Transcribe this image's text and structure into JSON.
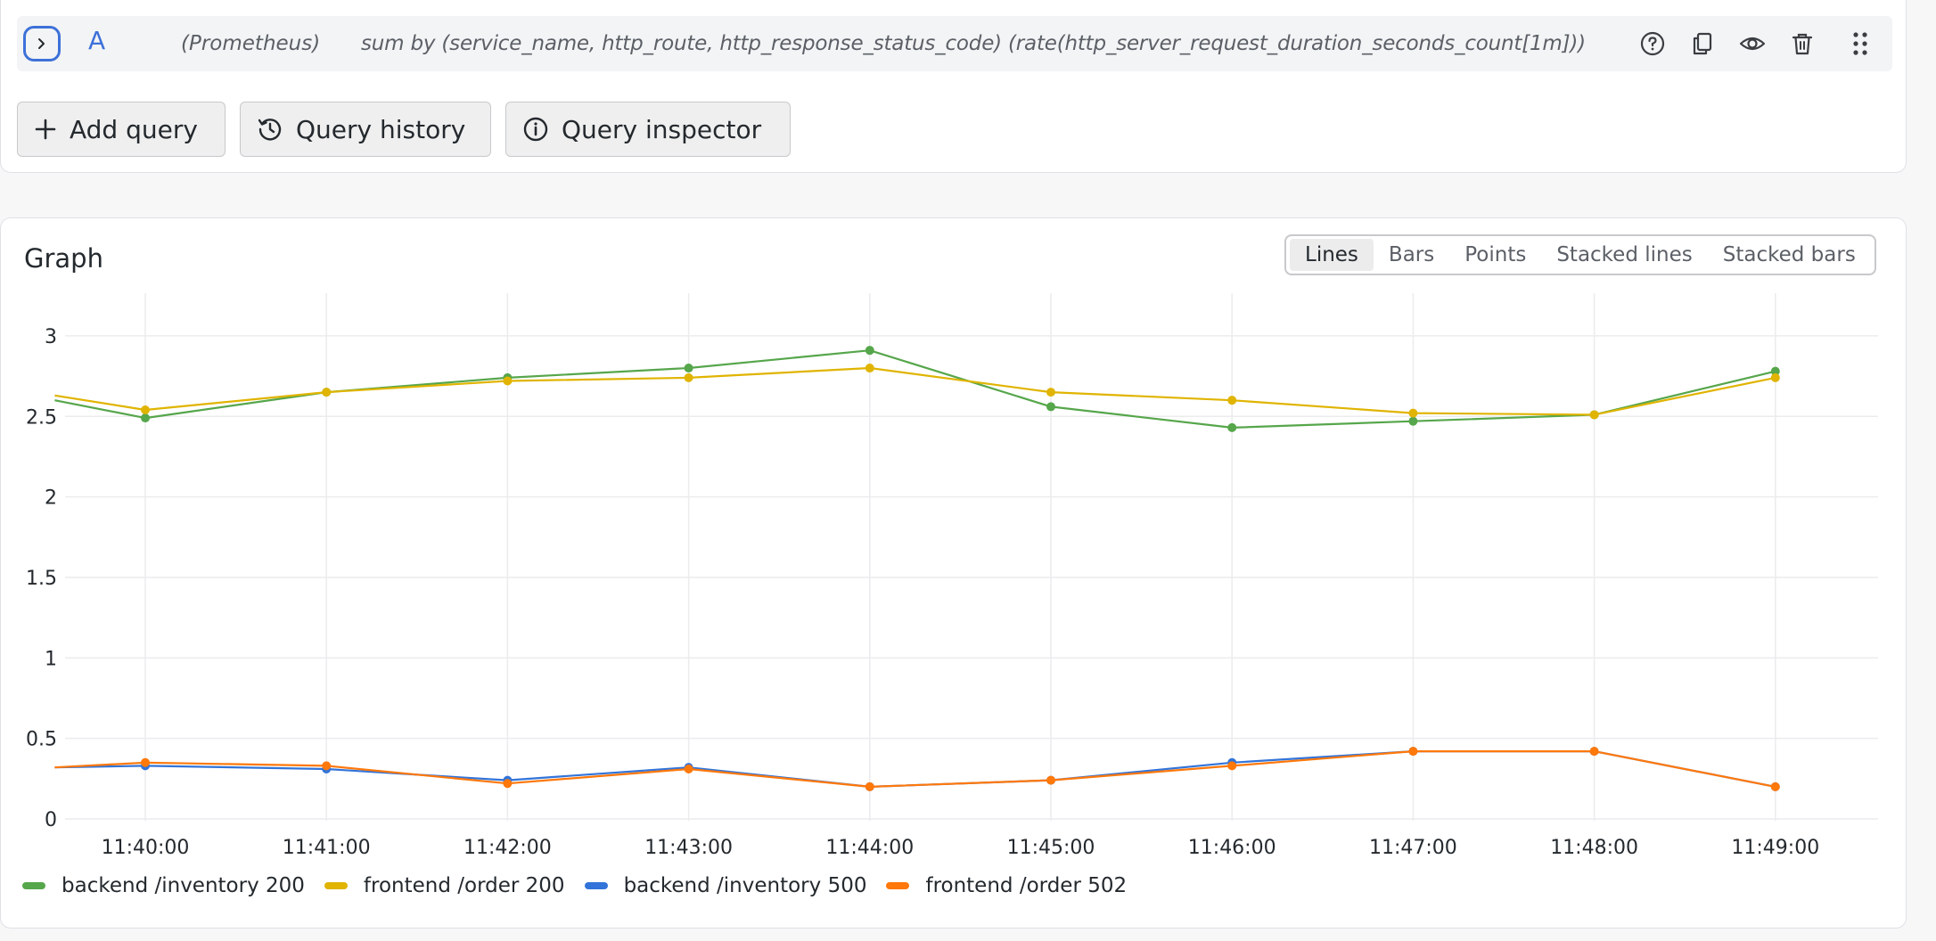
{
  "query": {
    "letter": "A",
    "datasource": "(Prometheus)",
    "expression": "sum by (service_name, http_route, http_response_status_code) (rate(http_server_request_duration_seconds_count[1m]))",
    "icons": [
      "help-icon",
      "copy-icon",
      "eye-icon",
      "trash-icon",
      "drag-handle-icon"
    ]
  },
  "toolbar": {
    "add_query": "Add query",
    "query_history": "Query history",
    "query_inspector": "Query inspector"
  },
  "graph": {
    "title": "Graph",
    "view_modes": [
      "Lines",
      "Bars",
      "Points",
      "Stacked lines",
      "Stacked bars"
    ],
    "active_mode": "Lines"
  },
  "colors": {
    "accent": "#3d71d9",
    "green": "#56a64b",
    "yellow": "#e0b400",
    "blue": "#3274d9",
    "orange": "#ff780a"
  },
  "chart_data": {
    "type": "line",
    "x": [
      "11:39:30",
      "11:40:00",
      "11:41:00",
      "11:42:00",
      "11:43:00",
      "11:44:00",
      "11:45:00",
      "11:46:00",
      "11:47:00",
      "11:48:00",
      "11:49:00"
    ],
    "xticks": [
      "11:40:00",
      "11:41:00",
      "11:42:00",
      "11:43:00",
      "11:44:00",
      "11:45:00",
      "11:46:00",
      "11:47:00",
      "11:48:00",
      "11:49:00"
    ],
    "yticks": [
      "0",
      "0.5",
      "1",
      "1.5",
      "2",
      "2.5",
      "3"
    ],
    "ylim": [
      0,
      3.2
    ],
    "grid": true,
    "legend_position": "bottom-left",
    "series": [
      {
        "name": "backend /inventory 200",
        "color": "#56a64b",
        "values": [
          2.6,
          2.49,
          2.65,
          2.74,
          2.8,
          2.91,
          2.56,
          2.43,
          2.47,
          2.51,
          2.78
        ]
      },
      {
        "name": "frontend /order 200",
        "color": "#e0b400",
        "values": [
          2.63,
          2.54,
          2.65,
          2.72,
          2.74,
          2.8,
          2.65,
          2.6,
          2.52,
          2.51,
          2.74
        ]
      },
      {
        "name": "backend /inventory 500",
        "color": "#3274d9",
        "values": [
          0.32,
          0.33,
          0.31,
          0.24,
          0.32,
          0.2,
          0.24,
          0.35,
          0.42,
          0.42,
          0.2
        ]
      },
      {
        "name": "frontend /order 502",
        "color": "#ff780a",
        "values": [
          0.32,
          0.35,
          0.33,
          0.22,
          0.31,
          0.2,
          0.24,
          0.33,
          0.42,
          0.42,
          0.2
        ]
      }
    ]
  }
}
